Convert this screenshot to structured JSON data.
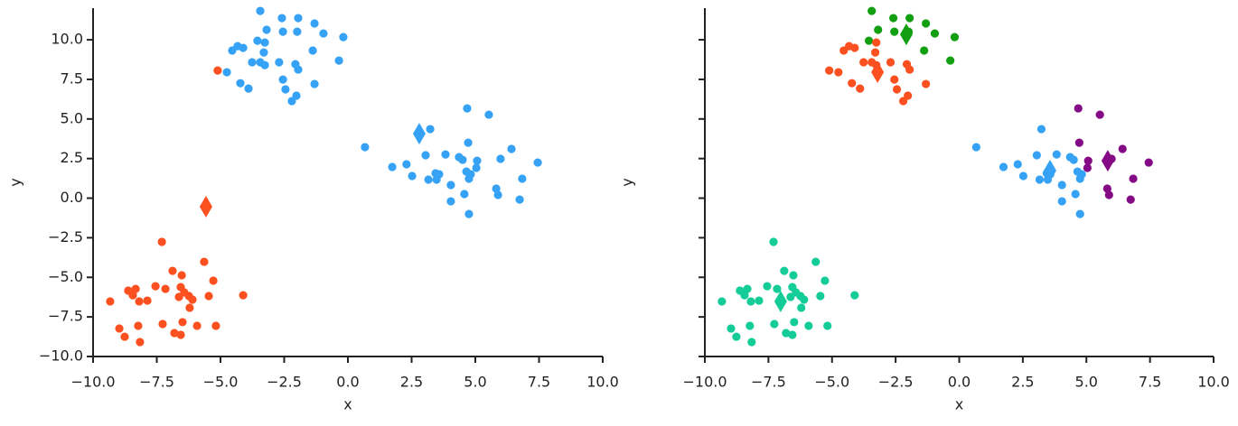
{
  "chart_data": [
    {
      "type": "scatter",
      "xlabel": "x",
      "ylabel": "y",
      "xlim": [
        -10,
        10
      ],
      "ylim": [
        -10,
        12
      ],
      "xticks": [
        {
          "value": -10,
          "label": "−10.0"
        },
        {
          "value": -7.5,
          "label": "−7.5"
        },
        {
          "value": -5,
          "label": "−5.0"
        },
        {
          "value": -2.5,
          "label": "−2.5"
        },
        {
          "value": 0,
          "label": "0.0"
        },
        {
          "value": 2.5,
          "label": "2.5"
        },
        {
          "value": 5,
          "label": "5.0"
        },
        {
          "value": 7.5,
          "label": "7.5"
        },
        {
          "value": 10,
          "label": "10.0"
        }
      ],
      "yticks": [
        {
          "value": -10,
          "label": "−10.0"
        },
        {
          "value": -7.5,
          "label": "−7.5"
        },
        {
          "value": -5,
          "label": "−5.0"
        },
        {
          "value": -2.5,
          "label": "−2.5"
        },
        {
          "value": 0,
          "label": "0.0"
        },
        {
          "value": 2.5,
          "label": "2.5"
        },
        {
          "value": 5,
          "label": "5.0"
        },
        {
          "value": 7.5,
          "label": "7.5"
        },
        {
          "value": 10,
          "label": "10.0"
        }
      ],
      "show_ytick_labels": true,
      "series": [
        {
          "color": "#35a2f5",
          "marker": "circle",
          "x": [
            -3.44,
            -2.59,
            -1.95,
            -1.31,
            -3.19,
            -2.55,
            -1.99,
            -0.96,
            -0.18,
            -3.55,
            -3.26,
            -4.33,
            -4.11,
            -4.54,
            -3.3,
            -1.38,
            -0.35,
            -4.75,
            -3.76,
            -3.44,
            -3.26,
            -2.7,
            -2.06,
            -1.95,
            -2.55,
            -4.22,
            -3.9,
            -2.45,
            -1.31,
            -2.02,
            -2.2,
            4.68,
            5.53,
            3.23,
            0.67,
            4.72,
            6.42,
            1.74,
            2.3,
            3.05,
            3.83,
            4.36,
            4.5,
            5.07,
            5.99,
            7.45,
            2.52,
            3.44,
            3.58,
            3.16,
            3.48,
            4.04,
            4.65,
            4.82,
            5.04,
            4.75,
            5.82,
            5.89,
            4.57,
            4.04,
            4.75,
            6.74,
            6.84
          ],
          "values": [
            11.82,
            11.37,
            11.37,
            11.03,
            10.63,
            10.51,
            10.51,
            10.4,
            10.17,
            9.94,
            9.83,
            9.6,
            9.49,
            9.32,
            9.2,
            9.32,
            8.69,
            7.95,
            8.58,
            8.58,
            8.4,
            8.58,
            8.46,
            8.12,
            7.49,
            7.26,
            6.92,
            6.87,
            7.21,
            6.47,
            6.13,
            5.67,
            5.27,
            4.36,
            3.22,
            3.5,
            3.11,
            1.97,
            2.14,
            2.71,
            2.76,
            2.59,
            2.42,
            2.36,
            2.48,
            2.25,
            1.4,
            1.57,
            1.51,
            1.17,
            1.17,
            0.83,
            1.68,
            1.51,
            1.91,
            1.23,
            0.6,
            0.2,
            0.26,
            -0.2,
            -1.0,
            -0.09,
            1.23
          ]
        },
        {
          "color": "#fc5020",
          "marker": "circle",
          "x": [
            -5.11,
            -7.3,
            -5.64,
            -6.88,
            -6.52,
            -5.28,
            -7.55,
            -7.16,
            -8.33,
            -8.62,
            -6.56,
            -6.42,
            -6.24,
            -6.63,
            -5.46,
            -4.11,
            -6.1,
            -8.44,
            -9.33,
            -8.19,
            -7.87,
            -6.21,
            -6.49,
            -7.27,
            -5.92,
            -5.18,
            -8.23,
            -8.97,
            -6.81,
            -6.56,
            -8.76,
            -8.16
          ],
          "values": [
            8.06,
            -2.76,
            -4.02,
            -4.59,
            -4.87,
            -5.21,
            -5.56,
            -5.73,
            -5.73,
            -5.84,
            -5.62,
            -5.95,
            -6.18,
            -6.24,
            -6.18,
            -6.13,
            -6.41,
            -6.13,
            -6.52,
            -6.52,
            -6.47,
            -6.92,
            -7.83,
            -7.95,
            -8.06,
            -8.06,
            -8.06,
            -8.23,
            -8.52,
            -8.63,
            -8.75,
            -9.09
          ]
        },
        {
          "color": "#35a2f5",
          "marker": "diamond",
          "x": [
            2.8
          ],
          "values": [
            4.07
          ]
        },
        {
          "color": "#fc5020",
          "marker": "diamond",
          "x": [
            -5.57
          ],
          "values": [
            -0.54
          ]
        }
      ]
    },
    {
      "type": "scatter",
      "xlabel": "x",
      "ylabel": "y",
      "xlim": [
        -10,
        10
      ],
      "ylim": [
        -10,
        12
      ],
      "xticks": [
        {
          "value": -10,
          "label": "−10.0"
        },
        {
          "value": -7.5,
          "label": "−7.5"
        },
        {
          "value": -5,
          "label": "−5.0"
        },
        {
          "value": -2.5,
          "label": "−2.5"
        },
        {
          "value": 0,
          "label": "0.0"
        },
        {
          "value": 2.5,
          "label": "2.5"
        },
        {
          "value": 5,
          "label": "5.0"
        },
        {
          "value": 7.5,
          "label": "7.5"
        },
        {
          "value": 10,
          "label": "10.0"
        }
      ],
      "yticks": [
        -10,
        -7.5,
        -5,
        -2.5,
        0,
        2.5,
        5,
        7.5,
        10
      ],
      "show_ytick_labels": false,
      "series": [
        {
          "color": "#12a012",
          "marker": "circle",
          "x": [
            -3.44,
            -2.59,
            -1.95,
            -1.31,
            -3.19,
            -2.55,
            -1.99,
            -0.96,
            -0.18,
            -3.55,
            -1.38,
            -0.35
          ],
          "values": [
            11.82,
            11.37,
            11.37,
            11.03,
            10.63,
            10.51,
            10.51,
            10.4,
            10.17,
            9.94,
            9.32,
            8.69
          ]
        },
        {
          "color": "#fc5020",
          "marker": "circle",
          "x": [
            -5.11,
            -3.26,
            -4.33,
            -4.11,
            -4.54,
            -3.3,
            -4.75,
            -3.76,
            -3.44,
            -3.26,
            -2.7,
            -2.06,
            -1.95,
            -2.55,
            -4.22,
            -3.9,
            -2.45,
            -1.31,
            -2.02,
            -2.2
          ],
          "values": [
            8.06,
            9.83,
            9.6,
            9.49,
            9.32,
            9.2,
            7.95,
            8.58,
            8.58,
            8.4,
            8.58,
            8.46,
            8.12,
            7.49,
            7.26,
            6.92,
            6.87,
            7.21,
            6.47,
            6.13
          ]
        },
        {
          "color": "#35a2f5",
          "marker": "circle",
          "x": [
            3.23,
            0.67,
            1.74,
            2.3,
            3.05,
            3.83,
            4.36,
            4.5,
            2.52,
            3.44,
            3.58,
            3.16,
            3.48,
            4.04,
            4.65,
            4.82,
            4.75,
            4.57,
            4.04,
            4.75
          ],
          "values": [
            4.36,
            3.22,
            1.97,
            2.14,
            2.71,
            2.76,
            2.59,
            2.42,
            1.4,
            1.57,
            1.51,
            1.17,
            1.17,
            0.83,
            1.68,
            1.51,
            1.23,
            0.26,
            -0.2,
            -1.0
          ]
        },
        {
          "color": "#850a85",
          "marker": "circle",
          "x": [
            4.68,
            5.53,
            4.72,
            6.42,
            5.07,
            5.99,
            7.45,
            5.82,
            5.89,
            6.74,
            6.84,
            5.04
          ],
          "values": [
            5.67,
            5.27,
            3.5,
            3.11,
            2.36,
            2.48,
            2.25,
            0.6,
            0.2,
            -0.09,
            1.23,
            1.91
          ]
        },
        {
          "color": "#14cc98",
          "marker": "circle",
          "x": [
            -7.3,
            -5.64,
            -6.88,
            -6.52,
            -5.28,
            -7.55,
            -7.16,
            -8.33,
            -8.62,
            -6.56,
            -6.42,
            -6.24,
            -6.63,
            -5.46,
            -4.11,
            -6.1,
            -8.44,
            -9.33,
            -8.19,
            -7.87,
            -6.21,
            -6.49,
            -7.27,
            -5.92,
            -5.18,
            -8.23,
            -8.97,
            -6.81,
            -6.56,
            -8.76,
            -8.16
          ],
          "values": [
            -2.76,
            -4.02,
            -4.59,
            -4.87,
            -5.21,
            -5.56,
            -5.73,
            -5.73,
            -5.84,
            -5.62,
            -5.95,
            -6.18,
            -6.24,
            -6.18,
            -6.13,
            -6.41,
            -6.13,
            -6.52,
            -6.52,
            -6.47,
            -6.92,
            -7.83,
            -7.95,
            -8.06,
            -8.06,
            -8.06,
            -8.23,
            -8.52,
            -8.63,
            -8.75,
            -9.09
          ]
        },
        {
          "color": "#12a012",
          "marker": "diamond",
          "x": [
            -2.08
          ],
          "values": [
            10.34
          ]
        },
        {
          "color": "#fc5020",
          "marker": "diamond",
          "x": [
            -3.21
          ],
          "values": [
            7.95
          ]
        },
        {
          "color": "#35a2f5",
          "marker": "diamond",
          "x": [
            3.57
          ],
          "values": [
            1.74
          ]
        },
        {
          "color": "#850a85",
          "marker": "diamond",
          "x": [
            5.84
          ],
          "values": [
            2.36
          ]
        },
        {
          "color": "#14cc98",
          "marker": "diamond",
          "x": [
            -7.02
          ],
          "values": [
            -6.52
          ]
        }
      ]
    }
  ]
}
